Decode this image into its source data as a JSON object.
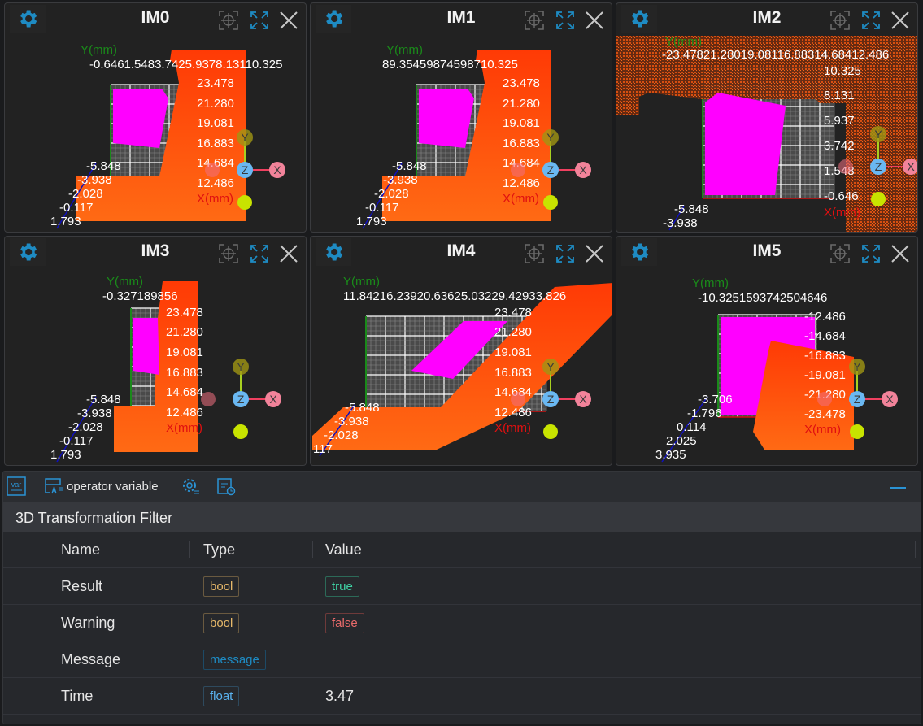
{
  "panels": [
    {
      "title": "IM0",
      "y_axis": "Y(mm)",
      "x_axis": "X(mm)",
      "top_ticks": "-0.6461.5483.7425.9378.13110.325",
      "right_ticks": [
        "23.478",
        "21.280",
        "19.081",
        "16.883",
        "14.684",
        "12.486"
      ],
      "depth_ticks": [
        "-5.848",
        "-3.938",
        "-2.028",
        "-0.117",
        "1.793"
      ]
    },
    {
      "title": "IM1",
      "y_axis": "Y(mm)",
      "x_axis": "X(mm)",
      "top_ticks": "89.35459874598710.325",
      "right_ticks": [
        "23.478",
        "21.280",
        "19.081",
        "16.883",
        "14.684",
        "12.486"
      ],
      "depth_ticks": [
        "-5.848",
        "-3.938",
        "-2.028",
        "-0.117",
        "1.793"
      ]
    },
    {
      "title": "IM2",
      "y_axis": "Y(mm)",
      "x_axis": "X(mm)",
      "top_ticks": "-23.47821.28019.08116.88314.68412.486",
      "right_ticks": [
        "10.325",
        "8.131",
        "5.937",
        "3.742",
        "1.548",
        "-0.646"
      ],
      "depth_ticks": [
        "-5.848",
        "-3.938"
      ]
    },
    {
      "title": "IM3",
      "y_axis": "Y(mm)",
      "x_axis": "X(mm)",
      "top_ticks": "-0.327189856",
      "right_ticks": [
        "23.478",
        "21.280",
        "19.081",
        "16.883",
        "14.684",
        "12.486"
      ],
      "depth_ticks": [
        "-5.848",
        "-3.938",
        "-2.028",
        "-0.117",
        "1.793"
      ]
    },
    {
      "title": "IM4",
      "y_axis": "Y(mm)",
      "x_axis": "X(mm)",
      "top_ticks": "11.84216.23920.63625.03229.42933.826",
      "right_ticks": [
        "23.478",
        "21.280",
        "19.081",
        "16.883",
        "14.684",
        "12.486"
      ],
      "depth_ticks": [
        "-5.848",
        "-3.938",
        "-2.028",
        "117"
      ]
    },
    {
      "title": "IM5",
      "y_axis": "Y(mm)",
      "x_axis": "X(mm)",
      "top_ticks": "-10.3251593742504646",
      "right_ticks": [
        "-12.486",
        "-14.684",
        "-16.883",
        "-19.081",
        "-21.280",
        "-23.478"
      ],
      "depth_ticks": [
        "-3.706",
        "-1.796",
        "0.114",
        "2.025",
        "3.935"
      ]
    }
  ],
  "gizmo": {
    "y": "Y",
    "z": "Z",
    "x": "X"
  },
  "toolbar": {
    "var_icon": "var",
    "operator_variable": "operator variable"
  },
  "section_title": "3D Transformation Filter",
  "table": {
    "headers": {
      "name": "Name",
      "type": "Type",
      "value": "Value"
    },
    "rows": [
      {
        "name": "Result",
        "type": "bool",
        "value": "true"
      },
      {
        "name": "Warning",
        "type": "bool",
        "value": "false"
      },
      {
        "name": "Message",
        "type": "message",
        "value": ""
      },
      {
        "name": "Time",
        "type": "float",
        "value": "3.47"
      }
    ]
  },
  "colors": {
    "accent": "#2a93d5",
    "orange": "#ff5a10",
    "magenta": "#ff00ff",
    "bool": "#e7b96a",
    "true": "#3fd1a4",
    "false": "#e86a6a",
    "message": "#1e8bc3",
    "float": "#5ab3f0"
  }
}
